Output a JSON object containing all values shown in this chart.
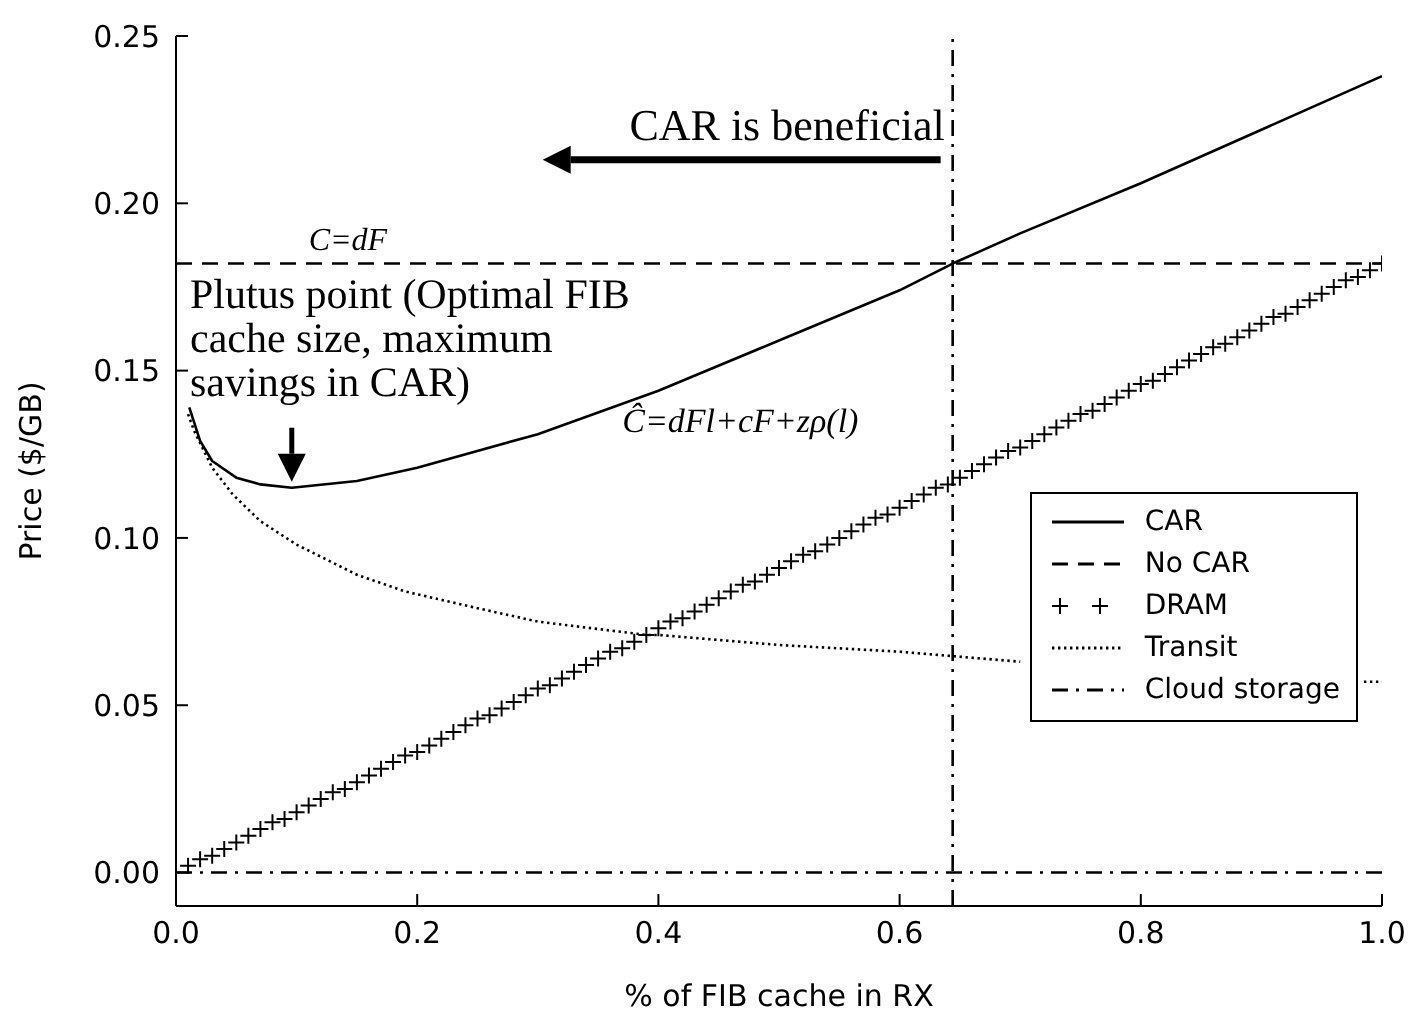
{
  "chart_data": {
    "type": "line",
    "xlabel": "% of FIB cache in RX",
    "ylabel": "Price ($/GB)",
    "xlim": [
      0,
      1
    ],
    "ylim": [
      -0.01,
      0.25
    ],
    "xticks": [
      {
        "value": 0,
        "label": "0.0"
      },
      {
        "value": 0.2,
        "label": "0.2"
      },
      {
        "value": 0.4,
        "label": "0.4"
      },
      {
        "value": 0.6,
        "label": "0.6"
      },
      {
        "value": 0.8,
        "label": "0.8"
      },
      {
        "value": 1,
        "label": "1.0"
      }
    ],
    "yticks": [
      {
        "value": 0,
        "label": "0.00"
      },
      {
        "value": 0.05,
        "label": "0.05"
      },
      {
        "value": 0.1,
        "label": "0.10"
      },
      {
        "value": 0.15,
        "label": "0.15"
      },
      {
        "value": 0.2,
        "label": "0.20"
      },
      {
        "value": 0.25,
        "label": "0.25"
      }
    ],
    "grid": false,
    "legend": "right",
    "series": [
      {
        "name": "CAR",
        "color": "#000000",
        "line_style": "solid",
        "x": [
          0.011,
          0.02,
          0.03,
          0.05,
          0.07,
          0.096,
          0.15,
          0.2,
          0.3,
          0.4,
          0.5,
          0.6,
          0.644,
          0.7,
          0.8,
          0.9,
          1.0
        ],
        "values": [
          0.139,
          0.129,
          0.123,
          0.118,
          0.116,
          0.115,
          0.117,
          0.121,
          0.131,
          0.144,
          0.159,
          0.174,
          0.182,
          0.191,
          0.206,
          0.222,
          0.238
        ]
      },
      {
        "name": "No CAR",
        "color": "#000000",
        "line_style": "dashed",
        "x": [
          0,
          1
        ],
        "values": [
          0.182,
          0.182
        ]
      },
      {
        "name": "DRAM",
        "color": "#000000",
        "type": "scatter",
        "marker": "cross",
        "x": [
          0.01,
          0.02,
          0.03,
          0.04,
          0.05,
          0.06,
          0.07,
          0.08,
          0.09,
          0.1,
          0.11,
          0.12,
          0.13,
          0.14,
          0.15,
          0.16,
          0.17,
          0.18,
          0.19,
          0.2,
          0.21,
          0.22,
          0.23,
          0.24,
          0.25,
          0.26,
          0.27,
          0.28,
          0.29,
          0.3,
          0.31,
          0.32,
          0.33,
          0.34,
          0.35,
          0.36,
          0.37,
          0.38,
          0.39,
          0.4,
          0.41,
          0.42,
          0.43,
          0.44,
          0.45,
          0.46,
          0.47,
          0.48,
          0.49,
          0.5,
          0.51,
          0.52,
          0.53,
          0.54,
          0.55,
          0.56,
          0.57,
          0.58,
          0.59,
          0.6,
          0.61,
          0.62,
          0.63,
          0.64,
          0.65,
          0.66,
          0.67,
          0.68,
          0.69,
          0.7,
          0.71,
          0.72,
          0.73,
          0.74,
          0.75,
          0.76,
          0.77,
          0.78,
          0.79,
          0.8,
          0.81,
          0.82,
          0.83,
          0.84,
          0.85,
          0.86,
          0.87,
          0.88,
          0.89,
          0.9,
          0.91,
          0.92,
          0.93,
          0.94,
          0.95,
          0.96,
          0.97,
          0.98,
          0.99,
          1.0
        ],
        "values": [
          0.002,
          0.004,
          0.005,
          0.007,
          0.009,
          0.011,
          0.013,
          0.015,
          0.016,
          0.018,
          0.02,
          0.022,
          0.024,
          0.025,
          0.027,
          0.029,
          0.031,
          0.033,
          0.035,
          0.036,
          0.038,
          0.04,
          0.042,
          0.044,
          0.046,
          0.047,
          0.049,
          0.051,
          0.053,
          0.055,
          0.056,
          0.058,
          0.06,
          0.062,
          0.064,
          0.066,
          0.067,
          0.069,
          0.071,
          0.073,
          0.075,
          0.076,
          0.078,
          0.08,
          0.082,
          0.084,
          0.086,
          0.087,
          0.089,
          0.091,
          0.093,
          0.095,
          0.096,
          0.098,
          0.1,
          0.102,
          0.104,
          0.106,
          0.107,
          0.109,
          0.111,
          0.113,
          0.115,
          0.116,
          0.118,
          0.12,
          0.122,
          0.124,
          0.126,
          0.127,
          0.129,
          0.131,
          0.133,
          0.135,
          0.137,
          0.138,
          0.14,
          0.142,
          0.144,
          0.146,
          0.147,
          0.149,
          0.151,
          0.153,
          0.155,
          0.157,
          0.158,
          0.16,
          0.162,
          0.164,
          0.166,
          0.167,
          0.169,
          0.171,
          0.173,
          0.175,
          0.177,
          0.178,
          0.18,
          0.182
        ]
      },
      {
        "name": "Transit",
        "color": "#000000",
        "line_style": "dotted",
        "x": [
          0.01,
          0.015,
          0.03,
          0.047,
          0.07,
          0.1,
          0.15,
          0.19,
          0.25,
          0.3,
          0.39,
          0.4,
          0.5,
          0.6,
          0.7,
          0.8,
          0.9,
          0.985,
          1.0
        ],
        "values": [
          0.137,
          0.132,
          0.121,
          0.113,
          0.105,
          0.098,
          0.089,
          0.084,
          0.079,
          0.075,
          0.071,
          0.071,
          0.068,
          0.066,
          0.063,
          null,
          null,
          0.057,
          0.057
        ]
      },
      {
        "name": "Cloud storage",
        "color": "#000000",
        "line_style": "dashdot",
        "x": [
          0,
          1
        ],
        "values": [
          0,
          0
        ]
      }
    ],
    "ref_lines": [
      {
        "axis": "x",
        "value": 0.644,
        "color": "#000000",
        "line_style": "dashdot"
      }
    ],
    "annotations": [
      {
        "text": "CAR is beneficial",
        "x": 0.644,
        "y": 0.213
      },
      {
        "text": "C=dF",
        "x": 0.11,
        "y": 0.182
      },
      {
        "text": "Plutus point (Optimal FIB cache size, maximum savings in CAR)",
        "x": 0.096,
        "y": 0.115
      },
      "Ĉ=dFl+cF+zρ(l)"
    ]
  }
}
